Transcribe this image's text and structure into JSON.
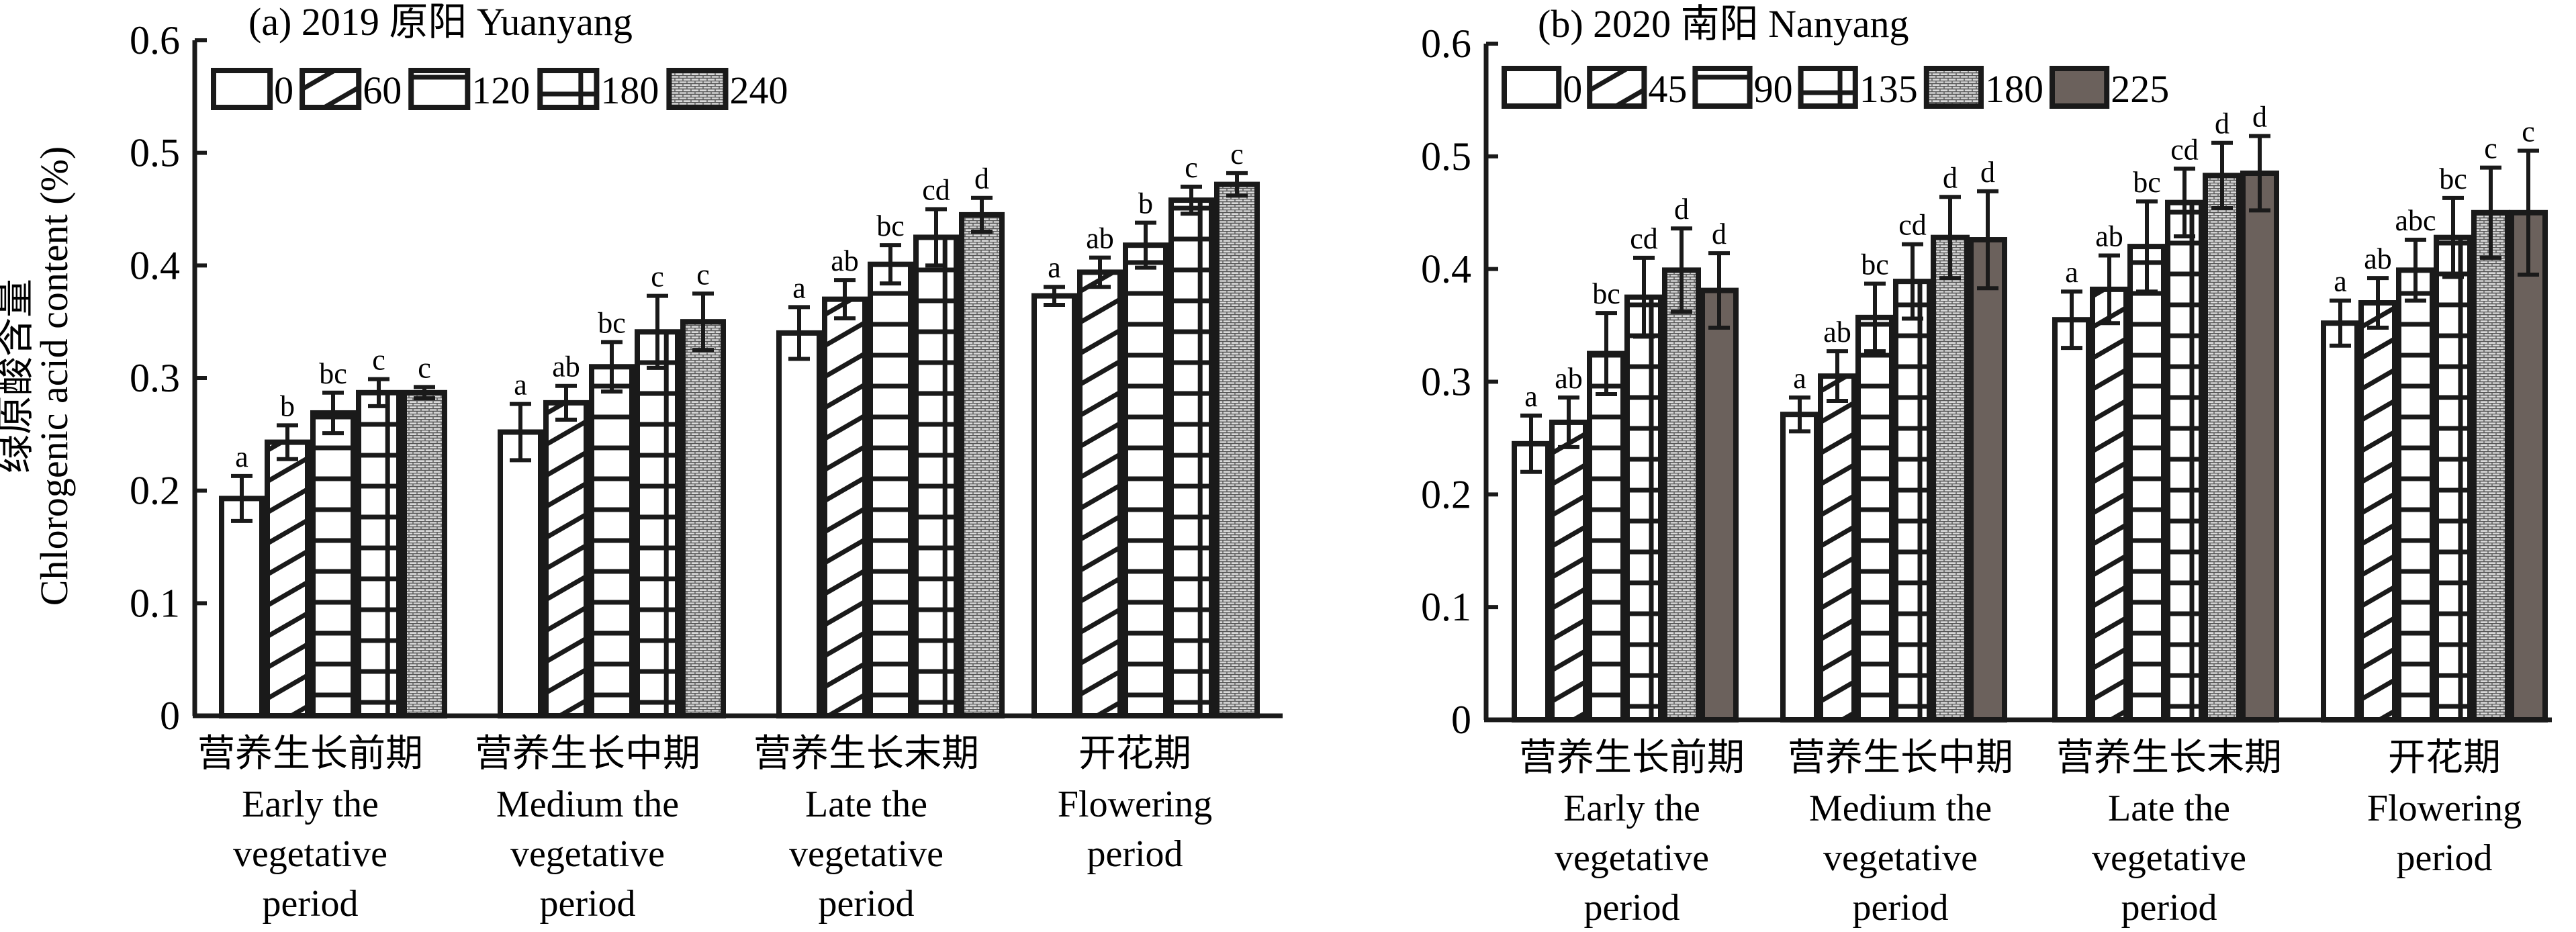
{
  "figure": {
    "ylabel_cn": "绿原酸含量",
    "ylabel_en": "Chlorogenic acid content (%)"
  },
  "chart_data": [
    {
      "type": "bar",
      "panel": "a",
      "title": "(a) 2019 原阳 Yuanyang",
      "xlabel": "",
      "ylabel": "绿原酸含量 Chlorogenic acid content (%)",
      "ylim": [
        0,
        0.6
      ],
      "yticks": [
        "0",
        "0.1",
        "0.2",
        "0.3",
        "0.4",
        "0.5",
        "0.6"
      ],
      "grid": false,
      "legend_position": "top-left",
      "categories": [
        {
          "cn": "营养生长前期",
          "en": [
            "Early the",
            "vegetative",
            "period"
          ]
        },
        {
          "cn": "营养生长中期",
          "en": [
            "Medium the",
            "vegetative",
            "period"
          ]
        },
        {
          "cn": "营养生长末期",
          "en": [
            "Late the",
            "vegetative",
            "period"
          ]
        },
        {
          "cn": "开花期",
          "en": [
            "Flowering",
            "period"
          ]
        }
      ],
      "series": [
        {
          "name": "0",
          "pattern": "white",
          "values": [
            0.193,
            0.252,
            0.34,
            0.373
          ],
          "errors": [
            0.02,
            0.025,
            0.023,
            0.008
          ],
          "sig": [
            "a",
            "a",
            "a",
            "a"
          ]
        },
        {
          "name": "60",
          "pattern": "diagonal",
          "values": [
            0.243,
            0.278,
            0.37,
            0.394
          ],
          "errors": [
            0.015,
            0.015,
            0.017,
            0.013
          ],
          "sig": [
            "b",
            "ab",
            "ab",
            "ab"
          ]
        },
        {
          "name": "120",
          "pattern": "horizontal",
          "values": [
            0.269,
            0.31,
            0.401,
            0.418
          ],
          "errors": [
            0.018,
            0.022,
            0.017,
            0.02
          ],
          "sig": [
            "bc",
            "bc",
            "bc",
            "b"
          ]
        },
        {
          "name": "180",
          "pattern": "grid",
          "values": [
            0.287,
            0.341,
            0.425,
            0.458
          ],
          "errors": [
            0.012,
            0.032,
            0.025,
            0.012
          ],
          "sig": [
            "c",
            "c",
            "cd",
            "c"
          ]
        },
        {
          "name": "240",
          "pattern": "brick",
          "values": [
            0.287,
            0.35,
            0.445,
            0.472
          ],
          "errors": [
            0.005,
            0.025,
            0.015,
            0.01
          ],
          "sig": [
            "c",
            "c",
            "d",
            "c"
          ]
        }
      ]
    },
    {
      "type": "bar",
      "panel": "b",
      "title": "(b) 2020 南阳 Nanyang",
      "xlabel": "",
      "ylabel": "",
      "ylim": [
        0,
        0.6
      ],
      "yticks": [
        "0",
        "0.1",
        "0.2",
        "0.3",
        "0.4",
        "0.5",
        "0.6"
      ],
      "grid": false,
      "legend_position": "top-left",
      "categories": [
        {
          "cn": "营养生长前期",
          "en": [
            "Early the",
            "vegetative",
            "period"
          ]
        },
        {
          "cn": "营养生长中期",
          "en": [
            "Medium the",
            "vegetative",
            "period"
          ]
        },
        {
          "cn": "营养生长末期",
          "en": [
            "Late the",
            "vegetative",
            "period"
          ]
        },
        {
          "cn": "开花期",
          "en": [
            "Flowering",
            "period"
          ]
        }
      ],
      "series": [
        {
          "name": "0",
          "pattern": "white",
          "values": [
            0.245,
            0.271,
            0.355,
            0.352
          ],
          "errors": [
            0.025,
            0.015,
            0.025,
            0.02
          ],
          "sig": [
            "a",
            "a",
            "a",
            "a"
          ]
        },
        {
          "name": "45",
          "pattern": "diagonal",
          "values": [
            0.264,
            0.305,
            0.382,
            0.37
          ],
          "errors": [
            0.022,
            0.022,
            0.03,
            0.022
          ],
          "sig": [
            "ab",
            "ab",
            "ab",
            "ab"
          ]
        },
        {
          "name": "90",
          "pattern": "horizontal",
          "values": [
            0.325,
            0.357,
            0.42,
            0.399
          ],
          "errors": [
            0.036,
            0.03,
            0.04,
            0.027
          ],
          "sig": [
            "bc",
            "bc",
            "bc",
            "abc"
          ]
        },
        {
          "name": "135",
          "pattern": "grid",
          "values": [
            0.375,
            0.389,
            0.459,
            0.428
          ],
          "errors": [
            0.035,
            0.033,
            0.03,
            0.035
          ],
          "sig": [
            "cd",
            "cd",
            "cd",
            "bc"
          ]
        },
        {
          "name": "180",
          "pattern": "brick",
          "values": [
            0.399,
            0.428,
            0.483,
            0.45
          ],
          "errors": [
            0.037,
            0.036,
            0.029,
            0.04
          ],
          "sig": [
            "d",
            "d",
            "d",
            "c"
          ]
        },
        {
          "name": "225",
          "pattern": "dark",
          "values": [
            0.381,
            0.426,
            0.485,
            0.45
          ],
          "errors": [
            0.033,
            0.043,
            0.033,
            0.055
          ],
          "sig": [
            "d",
            "d",
            "d",
            "c"
          ]
        }
      ]
    }
  ],
  "colors": {
    "ink": "#1a1a1a",
    "white_fill": "#ffffff",
    "brick_fill": "#b8b8b8",
    "dark_fill": "#6b615c"
  }
}
